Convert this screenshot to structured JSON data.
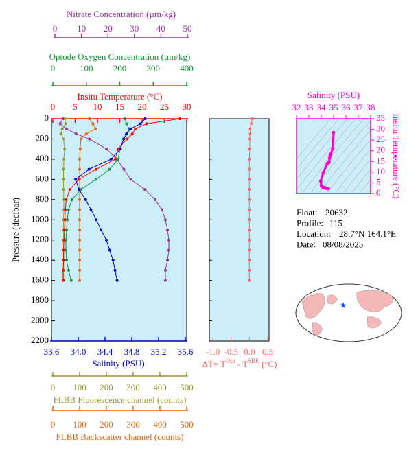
{
  "chart_data": [
    {
      "type": "profile",
      "y_label": "Pressure (decibar)",
      "ylim": [
        0,
        2200
      ],
      "yticks": [
        0,
        200,
        400,
        600,
        800,
        1000,
        1200,
        1400,
        1600,
        1800,
        2000,
        2200
      ],
      "pressure": [
        0,
        50,
        100,
        150,
        200,
        300,
        400,
        500,
        600,
        700,
        800,
        900,
        1000,
        1100,
        1200,
        1300,
        1400,
        1500,
        1600
      ],
      "background": "#cceef8",
      "axes": [
        {
          "label": "Nitrate Concentration (µm/kg)",
          "color": "#993399",
          "lim": [
            0,
            50
          ],
          "ticks": [
            0,
            10,
            20,
            30,
            40,
            50
          ],
          "values": [
            3,
            2,
            4.4,
            8,
            13,
            19.5,
            23.4,
            26,
            28.6,
            34,
            37.8,
            40.4,
            41.7,
            42.5,
            43,
            43,
            42.5,
            41.7,
            41.7
          ]
        },
        {
          "label": "Optode Oxygen Concentration (µm/kg)",
          "color": "#119933",
          "lim": [
            0,
            400
          ],
          "ticks": [
            0,
            100,
            200,
            300,
            400
          ],
          "values": [
            215,
            220,
            228,
            220,
            211,
            201,
            195,
            170,
            129,
            84,
            57,
            47,
            43,
            41,
            39,
            39,
            41,
            47,
            55
          ]
        },
        {
          "label": "Insitu Temperature (°C)",
          "color": "#ff0000",
          "lim": [
            0,
            30
          ],
          "ticks": [
            0,
            5,
            10,
            15,
            20,
            25,
            30
          ],
          "values": [
            28.5,
            21,
            18.5,
            17.8,
            16.6,
            14.6,
            14,
            9.7,
            5.8,
            3.8,
            3.0,
            2.8,
            2.7,
            2.6,
            2.5,
            2.4,
            2.4,
            2.3,
            2.3
          ]
        },
        {
          "label": "Salinity (PSU)",
          "color": "#0000cc",
          "lim": [
            33.6,
            35.6
          ],
          "ticks": [
            33.6,
            {
              "value": 34,
              "label": "34.0"
            },
            34.4,
            34.8,
            35.2,
            35.6
          ],
          "values": [
            35.0,
            34.93,
            34.78,
            34.72,
            34.68,
            34.63,
            34.49,
            34.16,
            33.96,
            34.01,
            34.11,
            34.19,
            34.27,
            34.34,
            34.42,
            34.47,
            34.52,
            34.55,
            34.58
          ]
        },
        {
          "label": "FLBB Fluorescence channel (counts)",
          "color": "#999933",
          "lim": [
            0,
            500
          ],
          "ticks": [
            0,
            100,
            200,
            300,
            400,
            500
          ],
          "values": [
            45,
            48,
            35,
            30,
            40,
            44,
            41,
            40,
            40,
            40,
            41,
            41,
            40,
            40,
            40,
            40,
            40,
            40,
            40
          ]
        },
        {
          "label": "FLBB Backscatter channel (counts)",
          "color": "#dd6611",
          "lim": [
            0,
            500
          ],
          "ticks": [
            0,
            100,
            200,
            300,
            400,
            500
          ],
          "values": [
            136,
            150,
            160,
            125,
            105,
            102,
            100,
            100,
            100,
            100,
            100,
            100,
            100,
            100,
            100,
            100,
            100,
            100,
            100
          ]
        }
      ]
    },
    {
      "type": "delta-profile",
      "label_parts": [
        "ΔT= T",
        "Opt",
        " - T",
        "SBE",
        " (°C)"
      ],
      "color": "#ff6666",
      "xlim": [
        -1.0,
        0.5
      ],
      "xticks": [
        {
          "value": -1,
          "label": "-1.0"
        },
        -0.5,
        {
          "value": 0,
          "label": "0.0"
        },
        0.5
      ],
      "values": [
        0.08,
        0.05,
        0.02,
        0.02,
        0.01,
        0.01,
        0,
        0,
        0,
        0,
        0,
        0,
        0,
        0,
        0,
        0,
        0,
        0,
        0
      ]
    },
    {
      "type": "ts",
      "x_label": "Salinity (PSU)",
      "y_label": "Insitu Temperature (°C)",
      "color": "#ff00cc",
      "xlim": [
        32,
        38
      ],
      "xticks": [
        32,
        33,
        34,
        35,
        36,
        37,
        38
      ],
      "ylim": [
        0,
        35
      ],
      "yticks": [
        0,
        5,
        10,
        15,
        20,
        25,
        30,
        35
      ]
    }
  ],
  "float_info": [
    {
      "label": "Float:",
      "value": "20632"
    },
    {
      "label": "Profile:",
      "value": "115"
    },
    {
      "label": "Location:",
      "value": "28.7°N  164.1°E"
    },
    {
      "label": "Date:",
      "value": "08/08/2025"
    }
  ]
}
